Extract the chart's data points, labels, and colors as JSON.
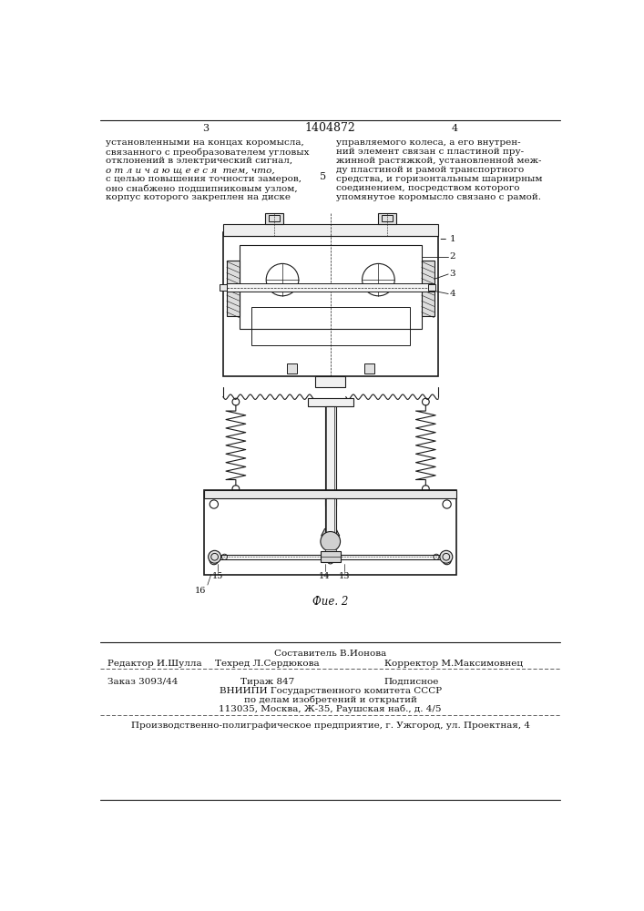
{
  "page_width": 7.07,
  "page_height": 10.0,
  "bg_color": "#ffffff",
  "page_num_left": "3",
  "page_num_center": "1404872",
  "page_num_right": "4",
  "col_left_lines": [
    "установленными на концах коромысла,",
    "связанного с преобразователем угловых",
    "отклонений в электрический сигнал,",
    "о т л и ч а ю щ е е с я  тем, что,",
    "с целью повышения точности замеров,",
    "оно снабжено подшипниковым узлом,",
    "корпус которого закреплен на диске"
  ],
  "col_right_lines": [
    "управляемого колеса, а его внутрен-",
    "ний элемент связан с пластиной пру-",
    "жинной растяжкой, установленной меж-",
    "ду пластиной и рамой транспортного",
    "средства, и горизонтальным шарнирным",
    "соединением, посредством которого",
    "упомянутое коромысло связано с рамой."
  ],
  "fig_caption": "Фие. 2",
  "footer_composer": "Составитель В.Ионова",
  "footer_editor": "Редактор И.Шулла",
  "footer_techred": "Техред Л.Сердюкова",
  "footer_corrector": "Корректор М.Максимовнец",
  "footer_order": "Заказ 3093/44",
  "footer_print": "Тираж 847",
  "footer_sub": "Подписное",
  "footer_org1": "ВНИИПИ Государственного комитета СССР",
  "footer_org2": "по делам изобретений и открытий",
  "footer_org3": "113035, Москва, Ж-35, Раушская наб., д. 4/5",
  "footer_printer": "Производственно-полиграфическое предприятие, г. Ужгород, ул. Проектная, 4"
}
